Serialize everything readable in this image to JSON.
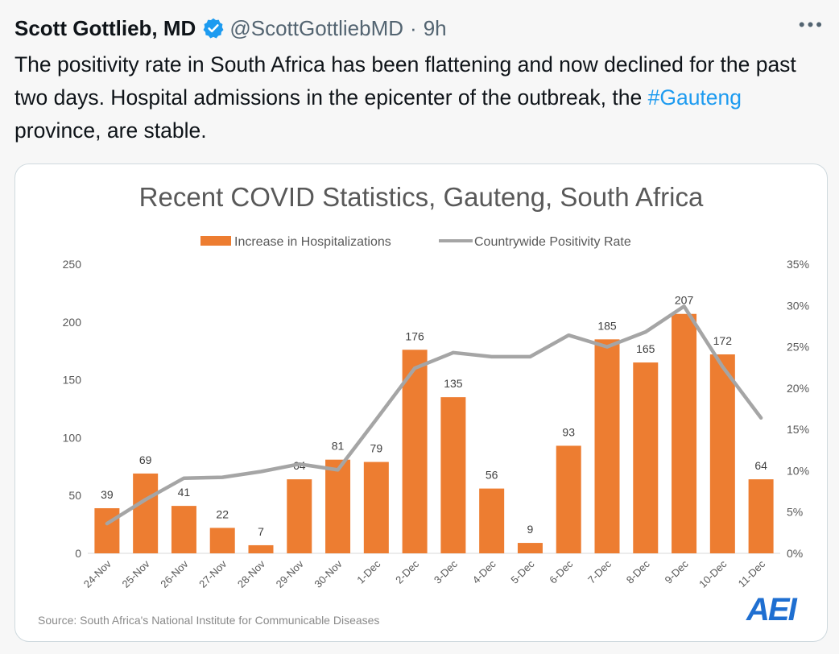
{
  "tweet": {
    "author_name": "Scott Gottlieb, MD",
    "handle": "@ScottGottliebMD",
    "separator": "·",
    "time": "9h",
    "more_label": "•••",
    "verified_icon": "verified-badge-icon",
    "verified_color": "#1d9bf0",
    "text_part1": "The positivity rate in South Africa has been flattening and now declined for the past two days. Hospital admissions in the epicenter of the outbreak, the ",
    "hashtag": "#Gauteng",
    "text_part2": " province, are stable."
  },
  "chart_data": {
    "type": "bar",
    "title": "Recent COVID Statistics, Gauteng, South Africa",
    "categories": [
      "24-Nov",
      "25-Nov",
      "26-Nov",
      "27-Nov",
      "28-Nov",
      "29-Nov",
      "30-Nov",
      "1-Dec",
      "2-Dec",
      "3-Dec",
      "4-Dec",
      "5-Dec",
      "6-Dec",
      "7-Dec",
      "8-Dec",
      "9-Dec",
      "10-Dec",
      "11-Dec"
    ],
    "series": [
      {
        "name": "Increase in Hospitalizations",
        "type": "bar",
        "axis": "left",
        "color": "#ed7d31",
        "values": [
          39,
          69,
          41,
          22,
          7,
          64,
          81,
          79,
          176,
          135,
          56,
          9,
          93,
          185,
          165,
          207,
          172,
          64
        ],
        "labels": [
          "39",
          "69",
          "41",
          "22",
          "7",
          "64",
          "81",
          "79",
          "176",
          "135",
          "56",
          "9",
          "93",
          "185",
          "165",
          "207",
          "172",
          "64"
        ]
      },
      {
        "name": "Countrywide Positivity Rate",
        "type": "line",
        "axis": "right",
        "color": "#a5a5a5",
        "values": [
          3.6,
          6.5,
          9.1,
          9.2,
          9.9,
          10.8,
          10.1,
          16.2,
          22.4,
          24.3,
          23.8,
          23.8,
          26.4,
          25.0,
          26.8,
          29.9,
          22.6,
          16.4
        ]
      }
    ],
    "y_left": {
      "min": 0,
      "max": 250,
      "ticks": [
        "0",
        "50",
        "100",
        "150",
        "200",
        "250"
      ]
    },
    "y_right": {
      "min": 0,
      "max": 35,
      "ticks": [
        "0%",
        "5%",
        "10%",
        "15%",
        "20%",
        "25%",
        "30%",
        "35%"
      ]
    },
    "grid": false,
    "legend_position": "top",
    "source": "Source: South Africa's National Institute for Communicable Diseases",
    "logo_text": "AEI",
    "logo_color": "#1f6fd1"
  }
}
